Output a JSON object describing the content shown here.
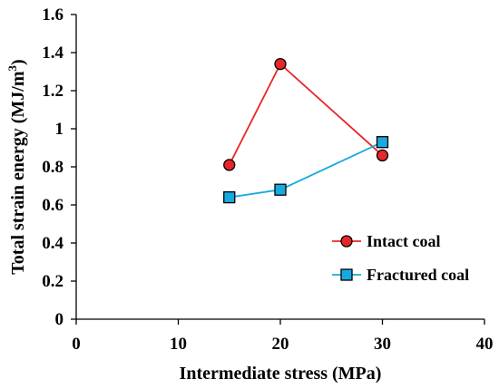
{
  "chart_data": {
    "type": "line",
    "xlabel": "Intermediate stress (MPa)",
    "ylabel_main": "Total strain energy (MJ/m",
    "ylabel_sup": "3",
    "ylabel_close": ")",
    "xlim": [
      0,
      40
    ],
    "ylim": [
      0,
      1.6
    ],
    "xticks": [
      "0",
      "10",
      "20",
      "30",
      "40"
    ],
    "yticks": [
      "0",
      "0.2",
      "0.4",
      "0.6",
      "0.8",
      "1",
      "1.2",
      "1.4",
      "1.6"
    ],
    "grid": false,
    "legend_position": "bottom-right",
    "series": [
      {
        "name": "Intact coal",
        "marker": "circle",
        "line_color": "#e8262a",
        "marker_fill": "#e8262a",
        "x": [
          15,
          20,
          30
        ],
        "y": [
          0.81,
          1.34,
          0.86
        ]
      },
      {
        "name": "Fractured coal",
        "marker": "square",
        "line_color": "#19a9e1",
        "marker_fill": "#19a9e1",
        "x": [
          15,
          20,
          30
        ],
        "y": [
          0.64,
          0.68,
          0.93
        ]
      }
    ]
  }
}
